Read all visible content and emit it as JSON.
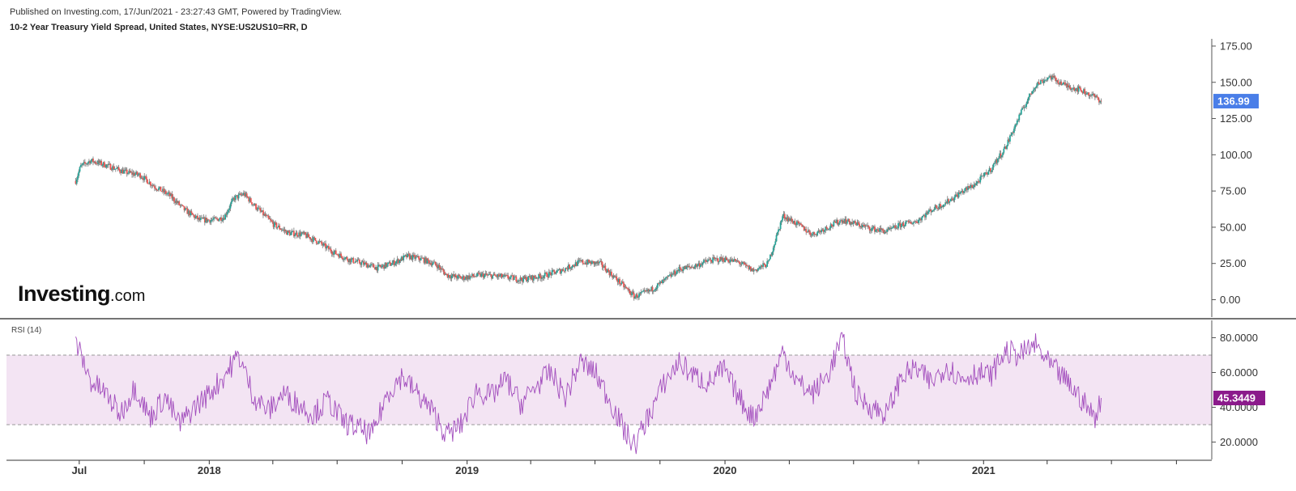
{
  "header": {
    "published": "Published on Investing.com, 17/Jun/2021 - 23:27:43 GMT, Powered by TradingView.",
    "instrument": "10-2 Year Treasury Yield Spread, United States, NYSE:US2US10=RR, D"
  },
  "logo": {
    "brand": "Investing",
    "suffix": ".com"
  },
  "colors": {
    "up": "#26a69a",
    "down": "#ef5350",
    "last_price_badge": "#4a7ee8",
    "rsi_line": "#a24dbd",
    "rsi_band": "#f3e4f3",
    "rsi_badge": "#8b1a8b"
  },
  "chart_data": [
    {
      "type": "candlestick",
      "title": "10-2 Year Treasury Yield Spread, United States, NYSE:US2US10=RR, D",
      "x_ticks": [
        "Jul",
        "2018",
        "2019",
        "2020",
        "2021"
      ],
      "y_ticks": [
        "175.00",
        "150.00",
        "125.00",
        "100.00",
        "75.00",
        "50.00",
        "25.00",
        "0.00"
      ],
      "ylim": [
        -12,
        180
      ],
      "last_value": "136.99",
      "xlim": [
        "2017-03-20",
        "2021-11-20"
      ],
      "series_points": [
        [
          "2017-06-26",
          82
        ],
        [
          "2017-07-03",
          92
        ],
        [
          "2017-07-17",
          96
        ],
        [
          "2017-08-07",
          93
        ],
        [
          "2017-09-04",
          88
        ],
        [
          "2017-09-25",
          86
        ],
        [
          "2017-10-16",
          78
        ],
        [
          "2017-11-06",
          72
        ],
        [
          "2017-11-27",
          62
        ],
        [
          "2017-12-18",
          55
        ],
        [
          "2018-01-08",
          55
        ],
        [
          "2018-01-22",
          57
        ],
        [
          "2018-02-05",
          70
        ],
        [
          "2018-02-19",
          73
        ],
        [
          "2018-03-12",
          62
        ],
        [
          "2018-04-02",
          52
        ],
        [
          "2018-04-23",
          46
        ],
        [
          "2018-05-14",
          45
        ],
        [
          "2018-06-04",
          40
        ],
        [
          "2018-06-25",
          33
        ],
        [
          "2018-07-16",
          28
        ],
        [
          "2018-08-06",
          25
        ],
        [
          "2018-08-27",
          22
        ],
        [
          "2018-09-17",
          25
        ],
        [
          "2018-10-08",
          30
        ],
        [
          "2018-10-29",
          28
        ],
        [
          "2018-11-19",
          24
        ],
        [
          "2018-12-03",
          17
        ],
        [
          "2018-12-24",
          15
        ],
        [
          "2019-01-21",
          17
        ],
        [
          "2019-02-18",
          16
        ],
        [
          "2019-03-18",
          14
        ],
        [
          "2019-04-15",
          16
        ],
        [
          "2019-05-13",
          20
        ],
        [
          "2019-06-10",
          26
        ],
        [
          "2019-07-08",
          25
        ],
        [
          "2019-08-05",
          12
        ],
        [
          "2019-08-26",
          2
        ],
        [
          "2019-09-16",
          6
        ],
        [
          "2019-10-07",
          13
        ],
        [
          "2019-10-28",
          21
        ],
        [
          "2019-11-18",
          23
        ],
        [
          "2019-12-09",
          27
        ],
        [
          "2019-12-30",
          28
        ],
        [
          "2020-01-20",
          26
        ],
        [
          "2020-02-10",
          20
        ],
        [
          "2020-03-02",
          25
        ],
        [
          "2020-03-23",
          58
        ],
        [
          "2020-04-13",
          52
        ],
        [
          "2020-05-04",
          45
        ],
        [
          "2020-05-25",
          50
        ],
        [
          "2020-06-15",
          55
        ],
        [
          "2020-07-06",
          52
        ],
        [
          "2020-07-27",
          49
        ],
        [
          "2020-08-17",
          47
        ],
        [
          "2020-09-07",
          52
        ],
        [
          "2020-09-28",
          54
        ],
        [
          "2020-10-19",
          62
        ],
        [
          "2020-11-09",
          67
        ],
        [
          "2020-11-30",
          74
        ],
        [
          "2020-12-21",
          80
        ],
        [
          "2021-01-11",
          90
        ],
        [
          "2021-02-01",
          105
        ],
        [
          "2021-02-22",
          128
        ],
        [
          "2021-03-15",
          148
        ],
        [
          "2021-04-05",
          154
        ],
        [
          "2021-04-26",
          148
        ],
        [
          "2021-05-17",
          145
        ],
        [
          "2021-06-07",
          140
        ],
        [
          "2021-06-17",
          137
        ]
      ]
    },
    {
      "type": "line",
      "title": "RSI (14)",
      "y_ticks": [
        "80.0000",
        "60.0000",
        "40.0000",
        "20.0000"
      ],
      "ylim": [
        10,
        90
      ],
      "band": [
        30,
        70
      ],
      "last_value": "45.3449",
      "series_points": [
        [
          "2017-06-26",
          78
        ],
        [
          "2017-07-17",
          55
        ],
        [
          "2017-08-07",
          48
        ],
        [
          "2017-08-28",
          36
        ],
        [
          "2017-09-18",
          52
        ],
        [
          "2017-10-09",
          34
        ],
        [
          "2017-10-30",
          46
        ],
        [
          "2017-11-20",
          30
        ],
        [
          "2017-12-11",
          40
        ],
        [
          "2018-01-01",
          48
        ],
        [
          "2018-01-22",
          58
        ],
        [
          "2018-02-12",
          70
        ],
        [
          "2018-03-05",
          46
        ],
        [
          "2018-03-26",
          38
        ],
        [
          "2018-04-16",
          48
        ],
        [
          "2018-05-07",
          42
        ],
        [
          "2018-05-28",
          36
        ],
        [
          "2018-06-18",
          44
        ],
        [
          "2018-07-09",
          32
        ],
        [
          "2018-07-30",
          28
        ],
        [
          "2018-08-20",
          24
        ],
        [
          "2018-09-10",
          48
        ],
        [
          "2018-10-01",
          58
        ],
        [
          "2018-10-22",
          48
        ],
        [
          "2018-11-12",
          38
        ],
        [
          "2018-12-03",
          24
        ],
        [
          "2018-12-24",
          30
        ],
        [
          "2019-01-14",
          50
        ],
        [
          "2019-02-04",
          46
        ],
        [
          "2019-02-25",
          56
        ],
        [
          "2019-03-18",
          42
        ],
        [
          "2019-04-08",
          52
        ],
        [
          "2019-04-29",
          60
        ],
        [
          "2019-05-20",
          46
        ],
        [
          "2019-06-10",
          66
        ],
        [
          "2019-07-01",
          60
        ],
        [
          "2019-07-22",
          44
        ],
        [
          "2019-08-12",
          26
        ],
        [
          "2019-08-26",
          18
        ],
        [
          "2019-09-16",
          36
        ],
        [
          "2019-10-07",
          54
        ],
        [
          "2019-10-28",
          66
        ],
        [
          "2019-11-18",
          58
        ],
        [
          "2019-12-09",
          54
        ],
        [
          "2019-12-30",
          62
        ],
        [
          "2020-01-20",
          46
        ],
        [
          "2020-02-10",
          34
        ],
        [
          "2020-03-02",
          50
        ],
        [
          "2020-03-23",
          72
        ],
        [
          "2020-04-13",
          54
        ],
        [
          "2020-05-04",
          48
        ],
        [
          "2020-05-25",
          58
        ],
        [
          "2020-06-15",
          80
        ],
        [
          "2020-07-06",
          46
        ],
        [
          "2020-07-27",
          40
        ],
        [
          "2020-08-17",
          36
        ],
        [
          "2020-09-07",
          58
        ],
        [
          "2020-09-28",
          62
        ],
        [
          "2020-10-19",
          54
        ],
        [
          "2020-11-09",
          64
        ],
        [
          "2020-11-30",
          56
        ],
        [
          "2020-12-21",
          60
        ],
        [
          "2021-01-11",
          58
        ],
        [
          "2021-02-01",
          72
        ],
        [
          "2021-02-22",
          70
        ],
        [
          "2021-03-15",
          76
        ],
        [
          "2021-04-05",
          64
        ],
        [
          "2021-04-26",
          56
        ],
        [
          "2021-05-17",
          46
        ],
        [
          "2021-06-07",
          34
        ],
        [
          "2021-06-17",
          45.3
        ]
      ]
    }
  ]
}
